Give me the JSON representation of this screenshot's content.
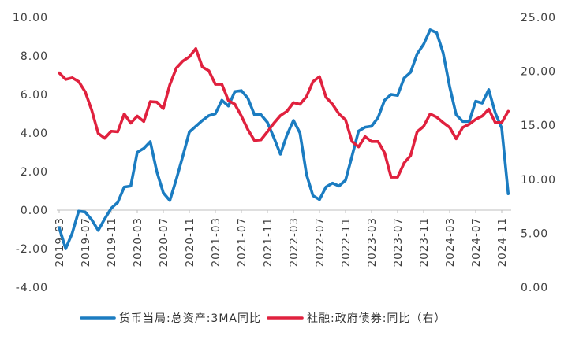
{
  "chart_data": {
    "type": "line",
    "legend_position": "bottom",
    "grid": false,
    "x_tick_labels": [
      "2019-03",
      "2019-07",
      "2019-11",
      "2020-03",
      "2020-07",
      "2020-11",
      "2021-03",
      "2021-07",
      "2021-11",
      "2022-03",
      "2022-07",
      "2022-11",
      "2023-03",
      "2023-07",
      "2023-11",
      "2024-03",
      "2024-07",
      "2024-11"
    ],
    "points_per_tick": 4,
    "y_left": {
      "min": -4,
      "max": 10,
      "ticks": [
        "-4.00",
        "-2.00",
        "0.00",
        "2.00",
        "4.00",
        "6.00",
        "8.00",
        "10.00"
      ]
    },
    "y_right": {
      "min": 0,
      "max": 25,
      "ticks": [
        "0.00",
        "5.00",
        "10.00",
        "15.00",
        "20.00",
        "25.00"
      ]
    },
    "series": [
      {
        "name": "货币当局:总资产:3MA同比",
        "y_axis": 0,
        "color": "#1B7CC1",
        "values": [
          -0.9,
          -2.0,
          -1.2,
          -0.05,
          -0.1,
          -0.5,
          -1.05,
          -0.45,
          0.1,
          0.4,
          1.2,
          1.25,
          3.0,
          3.2,
          3.55,
          2.0,
          0.9,
          0.5,
          1.6,
          2.8,
          4.05,
          4.35,
          4.65,
          4.9,
          5.0,
          5.7,
          5.4,
          6.15,
          6.2,
          5.8,
          4.95,
          4.95,
          4.55,
          3.75,
          2.9,
          3.9,
          4.65,
          4.0,
          1.85,
          0.75,
          0.55,
          1.2,
          1.4,
          1.25,
          1.55,
          2.8,
          4.1,
          4.3,
          4.35,
          4.8,
          5.7,
          6.0,
          5.95,
          6.85,
          7.15,
          8.1,
          8.6,
          9.35,
          9.2,
          8.15,
          6.4,
          4.95,
          4.6,
          4.6,
          5.65,
          5.55,
          6.25,
          5.05,
          4.25,
          0.85
        ]
      },
      {
        "name": "社融:政府债券:同比（右）",
        "y_axis": 1,
        "color": "#E0213E",
        "values": [
          19.85,
          19.25,
          19.4,
          19.05,
          18.1,
          16.4,
          14.25,
          13.8,
          14.45,
          14.4,
          16.05,
          15.2,
          15.85,
          15.35,
          17.2,
          17.15,
          16.55,
          18.75,
          20.3,
          20.95,
          21.35,
          22.1,
          20.4,
          20.05,
          18.8,
          18.8,
          17.3,
          16.95,
          15.85,
          14.6,
          13.6,
          13.65,
          14.4,
          15.2,
          15.9,
          16.3,
          17.1,
          16.95,
          17.65,
          19.05,
          19.5,
          17.6,
          16.95,
          16.05,
          15.5,
          13.5,
          13.0,
          13.95,
          13.5,
          13.5,
          12.45,
          10.2,
          10.2,
          11.5,
          12.2,
          14.4,
          14.9,
          16.05,
          15.75,
          15.25,
          14.8,
          13.75,
          14.8,
          15.1,
          15.55,
          15.85,
          16.5,
          15.25,
          15.25,
          16.3
        ]
      }
    ]
  }
}
